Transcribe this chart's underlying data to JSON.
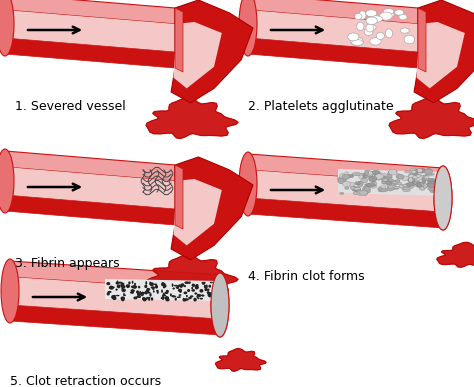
{
  "background_color": "#ffffff",
  "vessel_red": "#cc1111",
  "vessel_mid": "#e05050",
  "vessel_light": "#e87070",
  "vessel_inner": "#f5c8c8",
  "vessel_top_face": "#f0a0a0",
  "blood_dark": "#aa0000",
  "clot_gray": "#d8d8d8",
  "clot_dark": "#999999",
  "text_color": "#000000",
  "labels": [
    "1. Severed vessel",
    "2. Platelets agglutinate",
    "3. Fibrin appears",
    "4. Fibrin clot forms",
    "5. Clot retraction occurs"
  ],
  "fig_width": 4.74,
  "fig_height": 3.87,
  "dpi": 100
}
